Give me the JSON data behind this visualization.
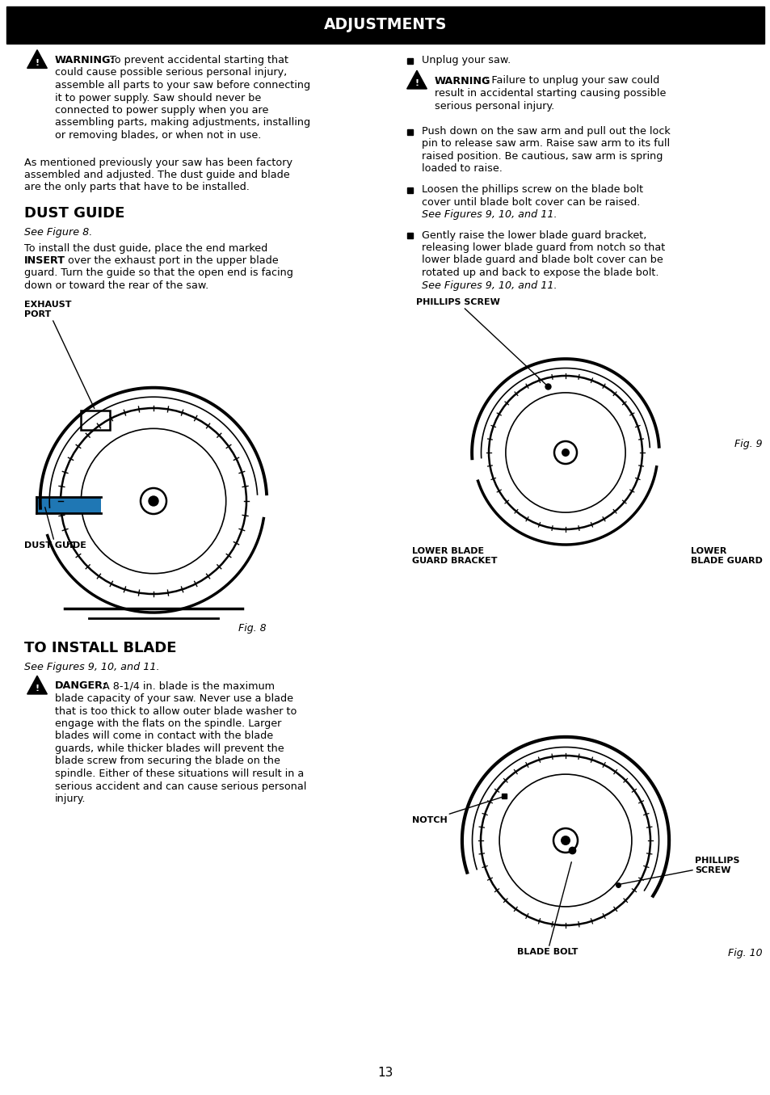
{
  "title": "ADJUSTMENTS",
  "title_bg": "#000000",
  "title_color": "#ffffff",
  "page_bg": "#ffffff",
  "page_number": "13",
  "warning1_bold": "WARNING:",
  "warning1_lines": [
    "To prevent accidental starting that",
    "could cause possible serious personal injury,",
    "assemble all parts to your saw before connecting",
    "it to power supply. Saw should never be",
    "connected to power supply when you are",
    "assembling parts, making adjustments, installing",
    "or removing blades, or when not in use."
  ],
  "intro_lines": [
    "As mentioned previously your saw has been factory",
    "assembled and adjusted. The dust guide and blade",
    "are the only parts that have to be installed."
  ],
  "section1_title": "DUST GUIDE",
  "section1_fig_ref": "See Figure 8.",
  "body1_line1": "To install the dust guide, place the end marked",
  "body1_line2_bold": "INSERT",
  "body1_line2_rest": " over the exhaust port in the upper blade",
  "body1_line3": "guard. Turn the guide so that the open end is facing",
  "body1_line4": "down or toward the rear of the saw.",
  "fig8_label": "Fig. 8",
  "fig8_exhaust_label": "EXHAUST\nPORT",
  "fig8_dust_label": "DUST GUIDE",
  "section2_title": "TO INSTALL BLADE",
  "section2_fig_ref": "See Figures 9, 10, and 11.",
  "danger_bold": "DANGER:",
  "danger_line1": " A 8-1/4 in. blade is the maximum",
  "danger_lines": [
    "blade capacity of your saw. Never use a blade",
    "that is too thick to allow outer blade washer to",
    "engage with the flats on the spindle. Larger",
    "blades will come in contact with the blade",
    "guards, while thicker blades will prevent the",
    "blade screw from securing the blade on the",
    "spindle. Either of these situations will result in a",
    "serious accident and can cause serious personal",
    "injury."
  ],
  "right_bullet1": "Unplug your saw.",
  "right_warning_bold": "WARNING",
  "right_warning_line1": ": Failure to unplug your saw could",
  "right_warning_lines": [
    "result in accidental starting causing possible",
    "serious personal injury."
  ],
  "right_bullet2_lines": [
    "Push down on the saw arm and pull out the lock",
    "pin to release saw arm. Raise saw arm to its full",
    "raised position. Be cautious, saw arm is spring",
    "loaded to raise."
  ],
  "right_bullet3_lines": [
    "Loosen the phillips screw on the blade bolt",
    "cover until blade bolt cover can be raised."
  ],
  "right_bullet3_italic": "See Figures 9, 10, and 11.",
  "right_bullet4_lines": [
    "Gently raise the lower blade guard bracket,",
    "releasing lower blade guard from notch so that",
    "lower blade guard and blade bolt cover can be",
    "rotated up and back to expose the blade bolt."
  ],
  "right_bullet4_italic": "See Figures 9, 10, and 11.",
  "fig9_label": "Fig. 9",
  "fig9_phillips": "PHILLIPS SCREW",
  "fig9_lower_bracket": "LOWER BLADE\nGUARD BRACKET",
  "fig9_lower_guard": "LOWER\nBLADE GUARD",
  "fig10_label": "Fig. 10",
  "fig10_notch": "NOTCH",
  "fig10_phillips": "PHILLIPS\nSCREW",
  "fig10_bolt": "BLADE BOLT"
}
